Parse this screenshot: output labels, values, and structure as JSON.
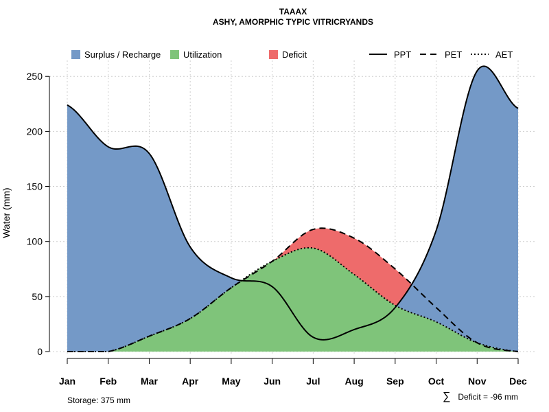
{
  "chart_data": {
    "type": "area",
    "title": "TAAAX",
    "subtitle": "ASHY, AMORPHIC TYPIC VITRICRYANDS",
    "xlabel": "",
    "ylabel": "Water (mm)",
    "categories": [
      "Jan",
      "Feb",
      "Mar",
      "Apr",
      "May",
      "Jun",
      "Jul",
      "Aug",
      "Sep",
      "Oct",
      "Nov",
      "Dec"
    ],
    "ylim": [
      0,
      262
    ],
    "yticks": [
      0,
      50,
      100,
      150,
      200,
      250
    ],
    "grid": true,
    "series": [
      {
        "name": "PPT",
        "style": "solid",
        "values": [
          224,
          186,
          180,
          95,
          67,
          59,
          13,
          20,
          40,
          110,
          255,
          221
        ]
      },
      {
        "name": "PET",
        "style": "dashed",
        "values": [
          0,
          0,
          14,
          30,
          58,
          82,
          111,
          103,
          75,
          40,
          8,
          0
        ]
      },
      {
        "name": "AET",
        "style": "dotted",
        "values": [
          0,
          0,
          14,
          30,
          58,
          82,
          94,
          70,
          42,
          27,
          8,
          0
        ]
      }
    ],
    "legend": [
      {
        "label": "Surplus / Recharge",
        "kind": "fill",
        "color": "#7499C7"
      },
      {
        "label": "Utilization",
        "kind": "fill",
        "color": "#7FC47A"
      },
      {
        "label": "Deficit",
        "kind": "fill",
        "color": "#EE6B6B"
      },
      {
        "label": "PPT",
        "kind": "line",
        "style": "solid"
      },
      {
        "label": "PET",
        "kind": "line",
        "style": "dashed"
      },
      {
        "label": "AET",
        "kind": "line",
        "style": "dotted"
      }
    ],
    "legend_position": "top",
    "colors": {
      "surplus": "#7499C7",
      "utilization": "#7FC47A",
      "deficit": "#EE6B6B",
      "line": "#000000"
    },
    "annotations": {
      "storage": "Storage: 375 mm",
      "deficit_symbol": "∑",
      "deficit": "Deficit = -96 mm"
    }
  }
}
